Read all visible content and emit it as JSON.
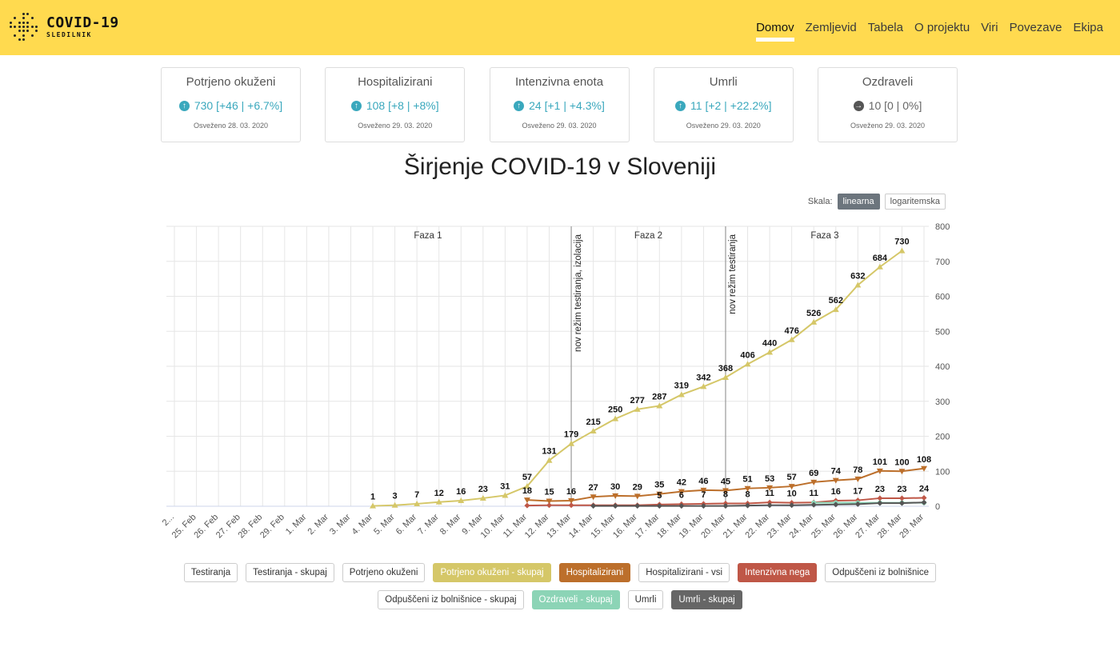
{
  "app": {
    "title": "COVID-19",
    "subtitle": "SLEDILNIK"
  },
  "nav": [
    "Domov",
    "Zemljevid",
    "Tabela",
    "O projektu",
    "Viri",
    "Povezave",
    "Ekipa"
  ],
  "cards": [
    {
      "title": "Potrjeno okuženi",
      "value": "730 [+46 | +6.7%]",
      "date": "Osveženo 28. 03. 2020",
      "trend": "up"
    },
    {
      "title": "Hospitalizirani",
      "value": "108 [+8 | +8%]",
      "date": "Osveženo 29. 03. 2020",
      "trend": "up"
    },
    {
      "title": "Intenzivna enota",
      "value": "24 [+1 | +4.3%]",
      "date": "Osveženo 29. 03. 2020",
      "trend": "up"
    },
    {
      "title": "Umrli",
      "value": "11 [+2 | +22.2%]",
      "date": "Osveženo 29. 03. 2020",
      "trend": "up"
    },
    {
      "title": "Ozdraveli",
      "value": "10 [0 | 0%]",
      "date": "Osveženo 29. 03. 2020",
      "trend": "flat"
    }
  ],
  "scale": {
    "label": "Skala:",
    "options": [
      "linearna",
      "logaritemska"
    ],
    "selected": "linearna"
  },
  "legend": {
    "row1": [
      {
        "label": "Testiranja",
        "active": false,
        "color": ""
      },
      {
        "label": "Testiranja - skupaj",
        "active": false,
        "color": ""
      },
      {
        "label": "Potrjeno okuženi",
        "active": false,
        "color": ""
      },
      {
        "label": "Potrjeno okuženi - skupaj",
        "active": true,
        "color": "#d5c768"
      },
      {
        "label": "Hospitalizirani",
        "active": true,
        "color": "#bc6f2b"
      },
      {
        "label": "Hospitalizirani - vsi",
        "active": false,
        "color": ""
      },
      {
        "label": "Intenzivna nega",
        "active": true,
        "color": "#bf5747"
      },
      {
        "label": "Odpuščeni iz bolnišnice",
        "active": false,
        "color": ""
      }
    ],
    "row2": [
      {
        "label": "Odpuščeni iz bolnišnice - skupaj",
        "active": false,
        "color": ""
      },
      {
        "label": "Ozdraveli - skupaj",
        "active": true,
        "color": "#8cd4b6"
      },
      {
        "label": "Umrli",
        "active": false,
        "color": ""
      },
      {
        "label": "Umrli - skupaj",
        "active": true,
        "color": "#666666"
      }
    ]
  },
  "chart_data": {
    "type": "line",
    "title": "Širjenje COVID-19 v Sloveniji",
    "x": [
      "2...",
      "25. Feb",
      "26. Feb",
      "27. Feb",
      "28. Feb",
      "29. Feb",
      "1. Mar",
      "2. Mar",
      "3. Mar",
      "4. Mar",
      "5. Mar",
      "6. Mar",
      "7. Mar",
      "8. Mar",
      "9. Mar",
      "10. Mar",
      "11. Mar",
      "12. Mar",
      "13. Mar",
      "14. Mar",
      "15. Mar",
      "16. Mar",
      "17. Mar",
      "18. Mar",
      "19. Mar",
      "20. Mar",
      "21. Mar",
      "22. Mar",
      "23. Mar",
      "24. Mar",
      "25. Mar",
      "26. Mar",
      "27. Mar",
      "28. Mar",
      "29. Mar"
    ],
    "ylim": [
      0,
      800
    ],
    "yticks": [
      0,
      100,
      200,
      300,
      400,
      500,
      600,
      700,
      800
    ],
    "grid": true,
    "series": [
      {
        "name": "Potrjeno okuženi - skupaj",
        "color": "#d5c768",
        "marker": "triangle-up",
        "values": [
          null,
          null,
          null,
          null,
          null,
          null,
          null,
          null,
          null,
          1,
          3,
          7,
          12,
          16,
          23,
          31,
          57,
          131,
          179,
          215,
          250,
          277,
          287,
          319,
          342,
          368,
          406,
          440,
          476,
          526,
          562,
          632,
          684,
          730,
          null
        ],
        "labels": [
          null,
          null,
          null,
          null,
          null,
          null,
          null,
          null,
          null,
          1,
          3,
          7,
          12,
          16,
          23,
          31,
          57,
          131,
          179,
          215,
          250,
          277,
          287,
          319,
          342,
          368,
          406,
          440,
          476,
          526,
          562,
          632,
          684,
          730,
          null
        ]
      },
      {
        "name": "Hospitalizirani",
        "color": "#bc6f2b",
        "marker": "triangle-down",
        "values": [
          null,
          null,
          null,
          null,
          null,
          null,
          null,
          null,
          null,
          null,
          null,
          null,
          null,
          null,
          null,
          null,
          18,
          15,
          16,
          27,
          30,
          29,
          35,
          42,
          46,
          45,
          51,
          53,
          57,
          69,
          74,
          78,
          101,
          100,
          108
        ],
        "labels": [
          null,
          null,
          null,
          null,
          null,
          null,
          null,
          null,
          null,
          null,
          null,
          null,
          null,
          null,
          null,
          null,
          18,
          15,
          16,
          27,
          30,
          29,
          35,
          42,
          46,
          45,
          51,
          53,
          57,
          69,
          74,
          78,
          101,
          100,
          108
        ]
      },
      {
        "name": "Intenzivna nega",
        "color": "#bf5747",
        "marker": "diamond",
        "values": [
          null,
          null,
          null,
          null,
          null,
          null,
          null,
          null,
          null,
          null,
          null,
          null,
          null,
          null,
          null,
          null,
          2,
          3,
          3,
          3,
          3,
          3,
          5,
          6,
          7,
          8,
          8,
          11,
          10,
          11,
          16,
          17,
          23,
          23,
          24
        ],
        "labels": [
          null,
          null,
          null,
          null,
          null,
          null,
          null,
          null,
          null,
          null,
          null,
          null,
          null,
          null,
          null,
          null,
          null,
          null,
          null,
          null,
          null,
          null,
          5,
          6,
          7,
          8,
          8,
          11,
          10,
          11,
          16,
          17,
          23,
          23,
          24
        ]
      },
      {
        "name": "Ozdraveli - skupaj",
        "color": "#8cd4b6",
        "marker": "circle",
        "values": [
          null,
          null,
          null,
          null,
          null,
          null,
          null,
          null,
          null,
          null,
          null,
          null,
          null,
          null,
          null,
          null,
          null,
          null,
          null,
          null,
          null,
          null,
          null,
          null,
          null,
          null,
          null,
          null,
          null,
          10,
          10,
          10,
          10,
          10,
          10
        ],
        "labels": []
      },
      {
        "name": "Umrli - skupaj",
        "color": "#555555",
        "marker": "diamond",
        "values": [
          null,
          null,
          null,
          null,
          null,
          null,
          null,
          null,
          null,
          null,
          null,
          null,
          null,
          null,
          null,
          null,
          null,
          null,
          null,
          1,
          1,
          1,
          1,
          1,
          1,
          1,
          2,
          3,
          3,
          4,
          5,
          6,
          9,
          9,
          11
        ],
        "labels": []
      }
    ],
    "plot_lines": [
      {
        "x_index": 18,
        "label": "nov režim testiranja, izolacija"
      },
      {
        "x_index": 25,
        "label": "nov režim testiranja"
      }
    ],
    "phases": [
      {
        "label": "Faza 1",
        "x_index": 11.5
      },
      {
        "label": "Faza 2",
        "x_index": 21.5
      },
      {
        "label": "Faza 3",
        "x_index": 29.5
      }
    ]
  }
}
